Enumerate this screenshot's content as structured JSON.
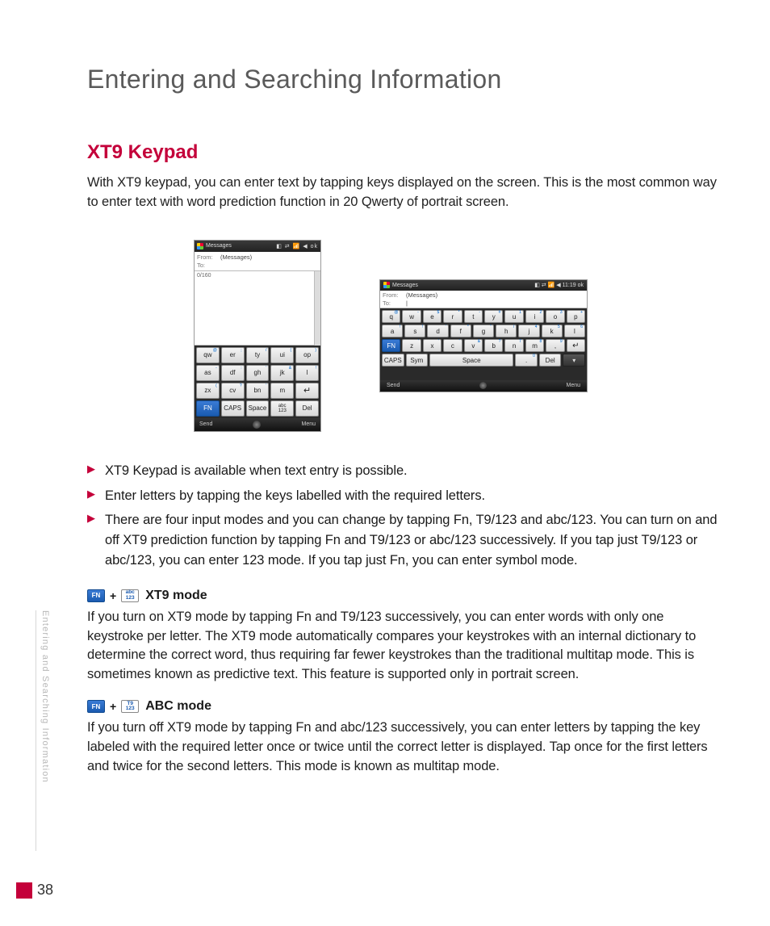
{
  "page": {
    "chapter_title": "Entering and Searching Information",
    "section_title": "XT9 Keypad",
    "intro": "With XT9 keypad, you can enter text by tapping keys displayed on the screen. This is the most common way to enter text with word prediction function in 20 Qwerty of portrait screen.",
    "side_tab": "Entering and Searching Information",
    "page_number": "38"
  },
  "colors": {
    "accent": "#c4003a",
    "heading_gray": "#5a5a5a",
    "body_text": "#222222",
    "fn_blue": "#1a5bb0",
    "side_text": "#b8b8b8"
  },
  "screenshots": {
    "portrait": {
      "topbar_title": "Messages",
      "topbar_right": "ok",
      "from_label": "From:",
      "from_value": "(Messages)",
      "to_label": "To:",
      "counter": "0/160",
      "bottom_left": "Send",
      "bottom_right": "Menu",
      "rows": [
        [
          {
            "m": "qw",
            "s": "@"
          },
          {
            "m": "er",
            "s": ";"
          },
          {
            "m": "ty",
            "s": "/"
          },
          {
            "m": "ui",
            "s": "("
          },
          {
            "m": "op",
            "s": ")"
          }
        ],
        [
          {
            "m": "as",
            "s": "-"
          },
          {
            "m": "df",
            "s": ":"
          },
          {
            "m": "gh",
            "s": "'"
          },
          {
            "m": "jk",
            "s": "&"
          },
          {
            "m": "l",
            "s": "!"
          }
        ],
        [
          {
            "m": "zx",
            "s": "("
          },
          {
            "m": "cv",
            "s": "?"
          },
          {
            "m": "bn",
            "s": "'"
          },
          {
            "m": "m",
            "s": ""
          },
          {
            "m": "",
            "enter": true
          }
        ],
        [
          {
            "m": "FN",
            "fn": true
          },
          {
            "m": "CAPS"
          },
          {
            "m": "Space"
          },
          {
            "m": "abc\n123"
          },
          {
            "m": "Del"
          }
        ]
      ]
    },
    "landscape": {
      "topbar_title": "Messages",
      "topbar_time": "11:19",
      "topbar_right": "ok",
      "from_label": "From:",
      "from_value": "(Messages)",
      "to_label": "To:",
      "bottom_left": "Send",
      "bottom_right": "Menu",
      "rows": [
        [
          {
            "m": "q",
            "s": "@"
          },
          {
            "m": "w",
            "s": "-"
          },
          {
            "m": "e",
            "s": "$"
          },
          {
            "m": "r",
            "s": "*"
          },
          {
            "m": "t",
            "s": "-"
          },
          {
            "m": "y",
            "s": "#"
          },
          {
            "m": "u",
            "s": "1"
          },
          {
            "m": "i",
            "s": "2"
          },
          {
            "m": "o",
            "s": "3"
          },
          {
            "m": "p",
            "s": "+"
          }
        ],
        [
          {
            "m": "a",
            "s": "!"
          },
          {
            "m": "s",
            "s": "!"
          },
          {
            "m": "d",
            "s": "'"
          },
          {
            "m": "f",
            "s": "*"
          },
          {
            "m": "g",
            "s": "\""
          },
          {
            "m": "h",
            "s": "/"
          },
          {
            "m": "j",
            "s": "4"
          },
          {
            "m": "k",
            "s": "5"
          },
          {
            "m": "l",
            "s": "6"
          }
        ],
        [
          {
            "m": "FN",
            "fn": true
          },
          {
            "m": "z",
            "s": "'"
          },
          {
            "m": "x",
            "s": "'"
          },
          {
            "m": "c",
            "s": "'"
          },
          {
            "m": "v",
            "s": "&"
          },
          {
            "m": "b",
            "s": "?"
          },
          {
            "m": "n",
            "s": "7"
          },
          {
            "m": "m",
            "s": "8"
          },
          {
            "m": ",",
            "s": "9"
          },
          {
            "m": "",
            "enter": true
          }
        ],
        [
          {
            "m": "CAPS"
          },
          {
            "m": "Sym"
          },
          {
            "m": "Space",
            "wide": 4
          },
          {
            "m": ".",
            "s": "0"
          },
          {
            "m": "Del"
          },
          {
            "m": "▾",
            "dark": true
          }
        ]
      ]
    }
  },
  "bullets": [
    "XT9 Keypad is available when text entry is possible.",
    "Enter letters by tapping the keys labelled with the required letters.",
    "There are four input modes and you can change by tapping Fn, T9/123 and abc/123. You can turn on and off XT9 prediction function by tapping Fn and T9/123 or abc/123 successively. If you tap just T9/123 or abc/123, you can enter 123 mode. If you tap just Fn, you can enter symbol mode."
  ],
  "modes": {
    "xt9": {
      "chip_fn": "FN",
      "chip_secondary_top": "abc",
      "chip_secondary_bot": "123",
      "plus": "+",
      "label": "XT9 mode",
      "body": "If you turn on XT9 mode by tapping Fn and T9/123 successively, you can enter words with only one keystroke per letter. The XT9 mode automatically compares your keystrokes with an internal dictionary to determine the correct word, thus requiring far fewer keystrokes than the traditional multitap mode. This is sometimes known as predictive text. This feature is supported only in portrait screen."
    },
    "abc": {
      "chip_fn": "FN",
      "chip_secondary_top": "T9",
      "chip_secondary_bot": "123",
      "plus": "+",
      "label": "ABC mode",
      "body": "If you turn off XT9 mode by tapping Fn and abc/123 successively, you can enter letters by tapping the key labeled with the required letter once or twice until the correct letter is displayed. Tap once for the first letters and twice for the second letters. This mode is known as multitap mode."
    }
  }
}
